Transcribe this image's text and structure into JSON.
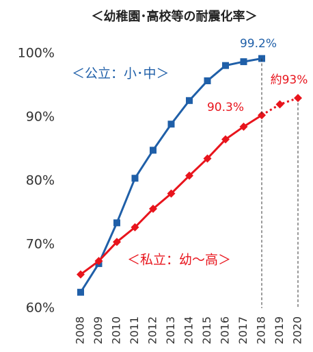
{
  "chart_data": {
    "type": "line",
    "title": "＜幼稚園･高校等の耐震化率＞",
    "categories": [
      "2008",
      "2009",
      "2010",
      "2011",
      "2012",
      "2013",
      "2014",
      "2015",
      "2016",
      "2017",
      "2018",
      "2019",
      "2020"
    ],
    "series": [
      {
        "name": "＜公立：小･中＞",
        "color": "#1f5fa8",
        "marker": "square",
        "values": [
          62.5,
          67.0,
          73.4,
          80.4,
          84.8,
          88.9,
          92.6,
          95.7,
          98.1,
          98.7,
          99.2,
          null,
          null
        ],
        "value_labels": [
          null,
          null,
          null,
          null,
          null,
          null,
          null,
          null,
          null,
          null,
          "99.2%",
          null,
          null
        ]
      },
      {
        "name": "＜私立：幼～高＞",
        "color": "#e8141c",
        "marker": "diamond",
        "dashed_from_index": 10,
        "values": [
          65.3,
          67.4,
          70.4,
          72.7,
          75.6,
          78.0,
          80.8,
          83.5,
          86.5,
          88.5,
          90.3,
          92.0,
          93
        ],
        "value_labels": [
          null,
          null,
          null,
          null,
          null,
          null,
          null,
          null,
          null,
          null,
          "90.3%",
          null,
          "約93%"
        ]
      }
    ],
    "ylim": [
      60,
      100
    ],
    "yticks": [
      {
        "value": 60,
        "label": "60%"
      },
      {
        "value": 70,
        "label": "70%"
      },
      {
        "value": 80,
        "label": "80%"
      },
      {
        "value": 90,
        "label": "90%"
      },
      {
        "value": 100,
        "label": "100%"
      }
    ]
  }
}
